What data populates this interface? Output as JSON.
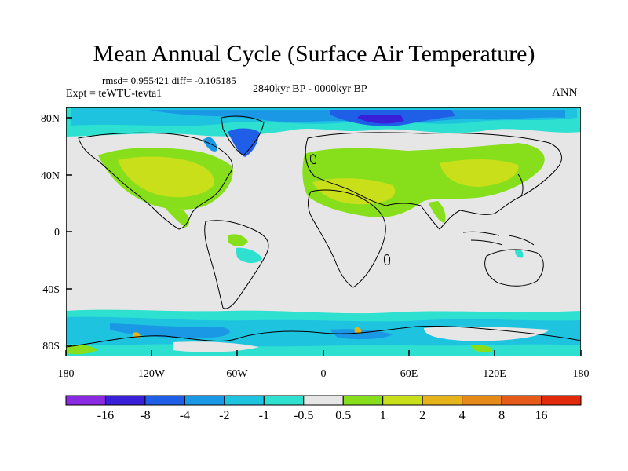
{
  "title": "Mean Annual Cycle (Surface Air Temperature)",
  "stats": "rmsd= 0.955421  diff= -0.105185",
  "experiment": "Expt = teWTU-tevta1",
  "period": "2840kyr BP - 0000kyr BP",
  "season": "ANN",
  "y_ticks": [
    "80N",
    "40N",
    "0",
    "40S",
    "80S"
  ],
  "x_ticks": [
    "180",
    "120W",
    "60W",
    "0",
    "60E",
    "120E",
    "180"
  ],
  "colorbar": {
    "labels": [
      "-16",
      "-8",
      "-4",
      "-2",
      "-1",
      "-0.5",
      "0.5",
      "1",
      "2",
      "4",
      "8",
      "16"
    ],
    "colors": [
      "#8a2be2",
      "#3a1fd9",
      "#1f5fe8",
      "#1a98e6",
      "#1ec3e0",
      "#2ee0d0",
      "#e6e6e6",
      "#86df1a",
      "#c9df1a",
      "#e6b41a",
      "#e68a1a",
      "#e65a1a",
      "#e02a0a"
    ]
  },
  "fill_colors": {
    "neutral": "#e6e6e6",
    "warm1": "#86df1a",
    "warm2": "#c9df1a",
    "warm4": "#e6b41a",
    "cool1": "#2ee0d0",
    "cool2": "#1ec3e0",
    "cool3": "#1a98e6",
    "cool4": "#1f5fe8",
    "cool5": "#3a1fd9"
  }
}
